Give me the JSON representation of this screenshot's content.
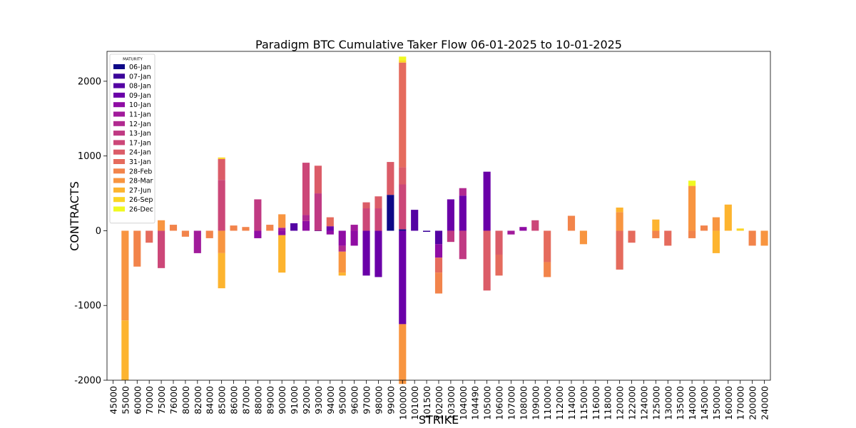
{
  "chart_data": {
    "type": "bar",
    "stacked": true,
    "title": "Paradigm BTC Cumulative Taker Flow 06-01-2025 to 10-01-2025",
    "xlabel": "STRIKE",
    "ylabel": "CONTRACTS",
    "ylim": [
      -2000,
      2400
    ],
    "yticks": [
      2000,
      1000,
      0,
      -1000,
      -2000
    ],
    "ytick_labels": [
      "2000",
      "1000",
      "0",
      "-1000",
      "-2000"
    ],
    "grid": false,
    "legend": {
      "title": "MATURITY",
      "placement": "top-left"
    },
    "categories": [
      "45000",
      "55000",
      "60000",
      "70000",
      "75000",
      "76000",
      "80000",
      "82000",
      "84000",
      "85000",
      "86000",
      "87000",
      "88000",
      "89000",
      "90000",
      "91000",
      "92000",
      "93000",
      "94000",
      "95000",
      "96000",
      "97000",
      "98000",
      "99000",
      "100000",
      "101000",
      "101500",
      "102000",
      "103000",
      "104000",
      "104490",
      "105000",
      "106000",
      "107000",
      "108000",
      "109000",
      "110000",
      "112000",
      "114000",
      "115000",
      "116000",
      "118000",
      "120000",
      "122000",
      "124000",
      "125000",
      "130000",
      "135000",
      "140000",
      "145000",
      "150000",
      "160000",
      "170000",
      "200000",
      "240000"
    ],
    "series": [
      {
        "name": "06-Jan",
        "color": "#0d0887",
        "segments": [
          {
            "i": 23,
            "v": 480
          },
          {
            "i": 24,
            "v": 20
          }
        ]
      },
      {
        "name": "07-Jan",
        "color": "#3b049a",
        "segments": [
          {
            "i": 26,
            "v": -15
          },
          {
            "i": 17,
            "v": -5
          }
        ]
      },
      {
        "name": "08-Jan",
        "color": "#5402a3",
        "segments": [
          {
            "i": 25,
            "v": 280
          },
          {
            "i": 27,
            "v": -180
          },
          {
            "i": 15,
            "v": 100
          }
        ]
      },
      {
        "name": "09-Jan",
        "color": "#6a00a8",
        "segments": [
          {
            "i": 21,
            "v": -600
          },
          {
            "i": 22,
            "v": -620
          },
          {
            "i": 29,
            "v": 470
          },
          {
            "i": 24,
            "v": -1250
          },
          {
            "i": 31,
            "v": 790
          },
          {
            "i": 28,
            "v": 420
          },
          {
            "i": 18,
            "v": 60
          }
        ]
      },
      {
        "name": "10-Jan",
        "color": "#8f0da4",
        "segments": [
          {
            "i": 12,
            "v": -100
          },
          {
            "i": 16,
            "v": 130
          },
          {
            "i": 19,
            "v": -200
          },
          {
            "i": 20,
            "v": -200
          },
          {
            "i": 27,
            "v": -180
          },
          {
            "i": 14,
            "v": -60
          },
          {
            "i": 34,
            "v": 50
          },
          {
            "i": 18,
            "v": -50
          }
        ]
      },
      {
        "name": "11-Jan",
        "color": "#a11b9b",
        "segments": [
          {
            "i": 7,
            "v": -300
          },
          {
            "i": 20,
            "v": 80
          },
          {
            "i": 33,
            "v": -50
          },
          {
            "i": 14,
            "v": 40
          }
        ]
      },
      {
        "name": "12-Jan",
        "color": "#b12a90",
        "segments": [
          {
            "i": 16,
            "v": 80
          },
          {
            "i": 19,
            "v": -80
          },
          {
            "i": 29,
            "v": 100
          }
        ]
      },
      {
        "name": "13-Jan",
        "color": "#c03a83",
        "segments": [
          {
            "i": 12,
            "v": 420
          },
          {
            "i": 17,
            "v": 500
          },
          {
            "i": 29,
            "v": -380
          },
          {
            "i": 28,
            "v": -150
          }
        ]
      },
      {
        "name": "17-Jan",
        "color": "#cc4778",
        "segments": [
          {
            "i": 9,
            "v": 680
          },
          {
            "i": 4,
            "v": -500
          },
          {
            "i": 21,
            "v": 300
          },
          {
            "i": 22,
            "v": 300
          },
          {
            "i": 24,
            "v": 600
          },
          {
            "i": 16,
            "v": 700
          },
          {
            "i": 35,
            "v": 140
          }
        ]
      },
      {
        "name": "24-Jan",
        "color": "#db5c68",
        "segments": [
          {
            "i": 31,
            "v": -800
          },
          {
            "i": 9,
            "v": 280
          },
          {
            "i": 23,
            "v": 440
          },
          {
            "i": 17,
            "v": 370
          },
          {
            "i": 24,
            "v": 230
          },
          {
            "i": 32,
            "v": -320
          },
          {
            "i": 22,
            "v": 160
          },
          {
            "i": 21,
            "v": 80
          }
        ]
      },
      {
        "name": "31-Jan",
        "color": "#e56b5d",
        "segments": [
          {
            "i": 24,
            "v": 1400
          },
          {
            "i": 36,
            "v": -420
          },
          {
            "i": 42,
            "v": -520
          },
          {
            "i": 27,
            "v": -200
          },
          {
            "i": 3,
            "v": -160
          },
          {
            "i": 32,
            "v": -280
          },
          {
            "i": 43,
            "v": -160
          },
          {
            "i": 46,
            "v": -200
          },
          {
            "i": 18,
            "v": 120
          }
        ]
      },
      {
        "name": "28-Feb",
        "color": "#f2844b",
        "segments": [
          {
            "i": 2,
            "v": -480
          },
          {
            "i": 13,
            "v": 80
          },
          {
            "i": 5,
            "v": 80
          },
          {
            "i": 6,
            "v": -80
          },
          {
            "i": 8,
            "v": -100
          },
          {
            "i": 10,
            "v": 70
          },
          {
            "i": 11,
            "v": 50
          },
          {
            "i": 27,
            "v": -280
          },
          {
            "i": 36,
            "v": -200
          },
          {
            "i": 38,
            "v": 200
          },
          {
            "i": 45,
            "v": -100
          },
          {
            "i": 48,
            "v": -100
          },
          {
            "i": 49,
            "v": 70
          },
          {
            "i": 53,
            "v": -200
          }
        ]
      },
      {
        "name": "28-Mar",
        "color": "#f89540",
        "segments": [
          {
            "i": 1,
            "v": -1200
          },
          {
            "i": 24,
            "v": -800
          },
          {
            "i": 9,
            "v": -300
          },
          {
            "i": 4,
            "v": 140
          },
          {
            "i": 42,
            "v": 250
          },
          {
            "i": 14,
            "v": 180
          },
          {
            "i": 50,
            "v": 180
          },
          {
            "i": 48,
            "v": 600
          },
          {
            "i": 19,
            "v": -280
          },
          {
            "i": 39,
            "v": -180
          },
          {
            "i": 54,
            "v": -200
          }
        ]
      },
      {
        "name": "27-Jun",
        "color": "#fdb42f",
        "segments": [
          {
            "i": 1,
            "v": -800
          },
          {
            "i": 9,
            "v": -470
          },
          {
            "i": 14,
            "v": -500
          },
          {
            "i": 50,
            "v": -300
          },
          {
            "i": 51,
            "v": 350
          },
          {
            "i": 42,
            "v": 60
          },
          {
            "i": 45,
            "v": 150
          },
          {
            "i": 19,
            "v": -40
          }
        ]
      },
      {
        "name": "26-Sep",
        "color": "#fbd524",
        "segments": [
          {
            "i": 24,
            "v": 30
          },
          {
            "i": 9,
            "v": 20
          },
          {
            "i": 52,
            "v": 30
          }
        ]
      },
      {
        "name": "26-Dec",
        "color": "#f0f921",
        "segments": [
          {
            "i": 24,
            "v": 50
          },
          {
            "i": 48,
            "v": 70
          }
        ]
      }
    ]
  }
}
